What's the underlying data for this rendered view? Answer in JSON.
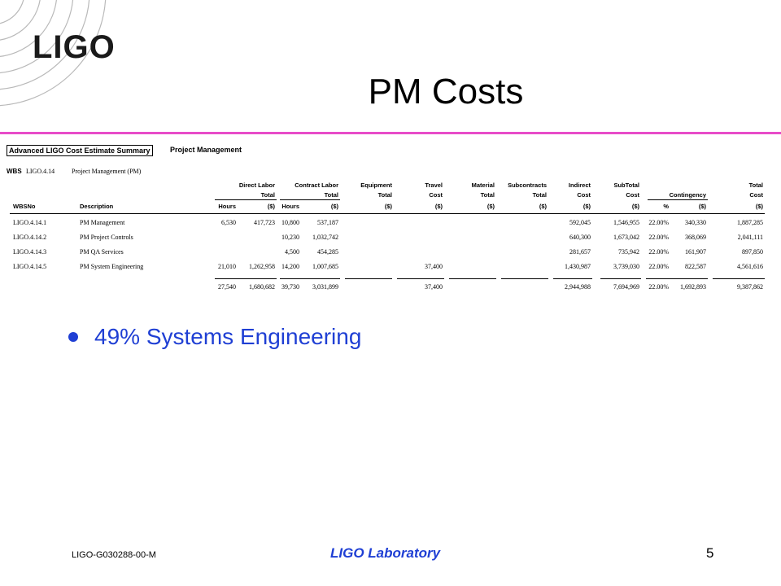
{
  "logo": {
    "text": "LIGO"
  },
  "title": "PM Costs",
  "table": {
    "summary_title": "Advanced LIGO Cost Estimate Summary",
    "summary_subtitle": "Project Management",
    "wbs_label": "WBS",
    "wbs_code": "LIGO.4.14",
    "wbs_desc": "Project Management (PM)",
    "group_headers": {
      "direct_labor": "Direct Labor",
      "contract_labor": "Contract Labor",
      "equipment": "Equipment",
      "travel": "Travel",
      "material": "Material",
      "subcontracts": "Subcontracts",
      "indirect": "Indirect",
      "subtotal": "SubTotal",
      "contingency": "Contingency",
      "total": "Total"
    },
    "second_headers": {
      "total": "Total",
      "cost": "Cost"
    },
    "col_headers": {
      "wbsno": "WBSNo",
      "description": "Description",
      "hours": "Hours",
      "dollars": "($)",
      "pct": "%"
    },
    "rows": [
      {
        "wbs": "LIGO.4.14.1",
        "desc": "PM Management",
        "dl_hours": "6,530",
        "dl_total": "417,723",
        "cl_hours": "10,800",
        "cl_total": "537,187",
        "travel": "",
        "indirect": "592,045",
        "subtotal": "1,546,955",
        "cont_pct": "22.00%",
        "cont_amt": "340,330",
        "total": "1,887,285"
      },
      {
        "wbs": "LIGO.4.14.2",
        "desc": "PM Project Controls",
        "dl_hours": "",
        "dl_total": "",
        "cl_hours": "10,230",
        "cl_total": "1,032,742",
        "travel": "",
        "indirect": "640,300",
        "subtotal": "1,673,042",
        "cont_pct": "22.00%",
        "cont_amt": "368,069",
        "total": "2,041,111"
      },
      {
        "wbs": "LIGO.4.14.3",
        "desc": "PM QA Services",
        "dl_hours": "",
        "dl_total": "",
        "cl_hours": "4,500",
        "cl_total": "454,285",
        "travel": "",
        "indirect": "281,657",
        "subtotal": "735,942",
        "cont_pct": "22.00%",
        "cont_amt": "161,907",
        "total": "897,850"
      },
      {
        "wbs": "LIGO.4.14.5",
        "desc": "PM System Engineering",
        "dl_hours": "21,010",
        "dl_total": "1,262,958",
        "cl_hours": "14,200",
        "cl_total": "1,007,685",
        "travel": "37,400",
        "indirect": "1,430,987",
        "subtotal": "3,739,030",
        "cont_pct": "22.00%",
        "cont_amt": "822,587",
        "total": "4,561,616"
      }
    ],
    "totals": {
      "dl_hours": "27,540",
      "dl_total": "1,680,682",
      "cl_hours": "39,730",
      "cl_total": "3,031,899",
      "travel": "37,400",
      "indirect": "2,944,988",
      "subtotal": "7,694,969",
      "cont_pct": "22.00%",
      "cont_amt": "1,692,893",
      "total": "9,387,862"
    }
  },
  "bullet": {
    "text": "49% Systems Engineering",
    "color": "#1f3fd4"
  },
  "footer": {
    "doc_id": "LIGO-G030288-00-M",
    "lab": "LIGO Laboratory",
    "page": "5"
  },
  "colors": {
    "rule": "#e84cc9",
    "accent": "#1f3fd4"
  }
}
